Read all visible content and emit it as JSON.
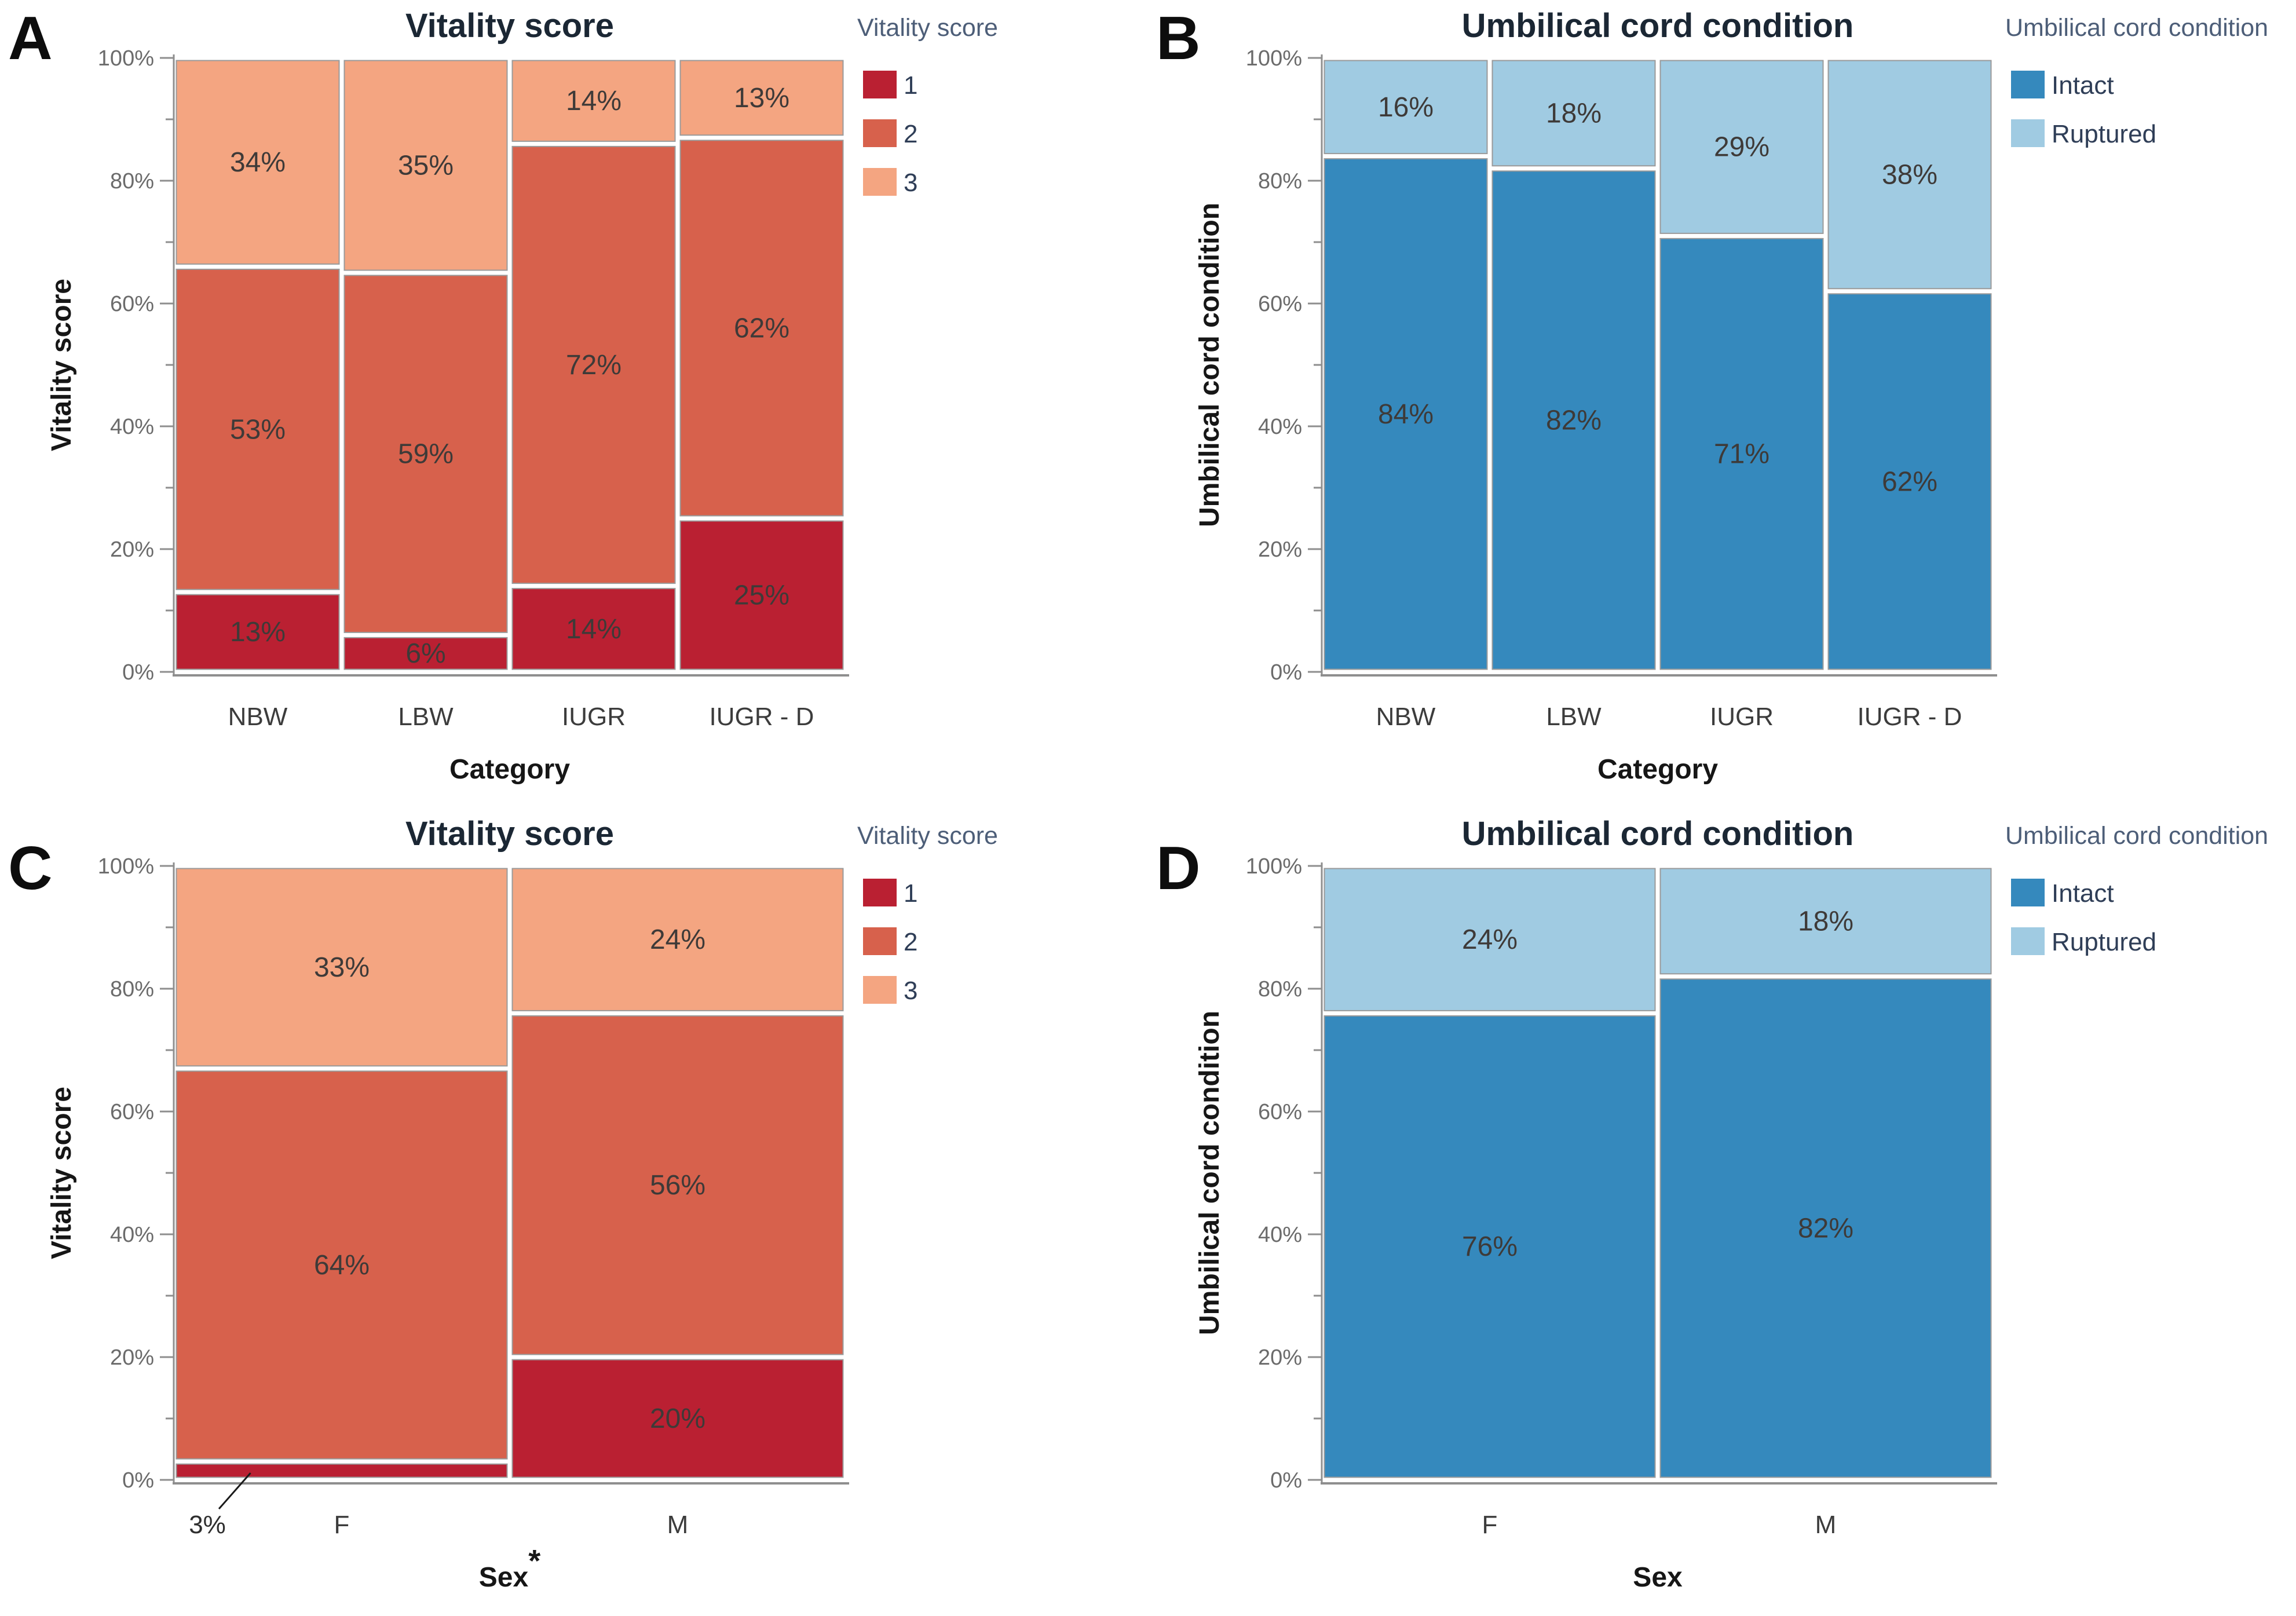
{
  "figure": {
    "panels": [
      {
        "label": "A"
      },
      {
        "label": "B"
      },
      {
        "label": "C"
      },
      {
        "label": "D"
      }
    ],
    "colors": {
      "vitality_1": "#ba2032",
      "vitality_2": "#d7614c",
      "vitality_3": "#f4a581",
      "intact": "#3589bd",
      "ruptured": "#a0cbe2"
    }
  },
  "chart_data": [
    {
      "panel": "A",
      "type": "mosaic",
      "title": "Vitality score",
      "xlabel": "Category",
      "xlabel_sup": "",
      "ylabel": "Vitality score",
      "ylim": [
        0,
        100
      ],
      "yticks": [
        "0%",
        "20%",
        "40%",
        "60%",
        "80%",
        "100%"
      ],
      "categories": [
        "NBW",
        "LBW",
        "IUGR",
        "IUGR - D"
      ],
      "col_widths": [
        0.25,
        0.25,
        0.25,
        0.25
      ],
      "legend_title": "Vitality score",
      "series": [
        {
          "name": "1",
          "color": "#ba2032",
          "values": [
            13,
            6,
            14,
            25
          ]
        },
        {
          "name": "2",
          "color": "#d7614c",
          "values": [
            53,
            59,
            72,
            62
          ]
        },
        {
          "name": "3",
          "color": "#f4a581",
          "values": [
            34,
            35,
            14,
            13
          ]
        }
      ],
      "callouts": []
    },
    {
      "panel": "B",
      "type": "mosaic",
      "title": "Umbilical cord condition",
      "xlabel": "Category",
      "xlabel_sup": "",
      "ylabel": "Umbilical cord condition",
      "ylim": [
        0,
        100
      ],
      "yticks": [
        "0%",
        "20%",
        "40%",
        "60%",
        "80%",
        "100%"
      ],
      "categories": [
        "NBW",
        "LBW",
        "IUGR",
        "IUGR - D"
      ],
      "col_widths": [
        0.25,
        0.25,
        0.25,
        0.25
      ],
      "legend_title": "Umbilical cord condition",
      "series": [
        {
          "name": "Intact",
          "color": "#3589bd",
          "values": [
            84,
            82,
            71,
            62
          ]
        },
        {
          "name": "Ruptured",
          "color": "#a0cbe2",
          "values": [
            16,
            18,
            29,
            38
          ]
        }
      ],
      "callouts": []
    },
    {
      "panel": "C",
      "type": "mosaic",
      "title": "Vitality score",
      "xlabel": "Sex",
      "xlabel_sup": "*",
      "ylabel": "Vitality score",
      "ylim": [
        0,
        100
      ],
      "yticks": [
        "0%",
        "20%",
        "40%",
        "60%",
        "80%",
        "100%"
      ],
      "categories": [
        "F",
        "M"
      ],
      "col_widths": [
        0.5,
        0.5
      ],
      "legend_title": "Vitality score",
      "series": [
        {
          "name": "1",
          "color": "#ba2032",
          "values": [
            3,
            20
          ]
        },
        {
          "name": "2",
          "color": "#d7614c",
          "values": [
            64,
            56
          ]
        },
        {
          "name": "3",
          "color": "#f4a581",
          "values": [
            33,
            24
          ]
        }
      ],
      "callouts": [
        {
          "cat": 0,
          "series": 0,
          "text": "3%"
        }
      ]
    },
    {
      "panel": "D",
      "type": "mosaic",
      "title": "Umbilical cord condition",
      "xlabel": "Sex",
      "xlabel_sup": "",
      "ylabel": "Umbilical cord condition",
      "ylim": [
        0,
        100
      ],
      "yticks": [
        "0%",
        "20%",
        "40%",
        "60%",
        "80%",
        "100%"
      ],
      "categories": [
        "F",
        "M"
      ],
      "col_widths": [
        0.5,
        0.5
      ],
      "legend_title": "Umbilical cord condition",
      "series": [
        {
          "name": "Intact",
          "color": "#3589bd",
          "values": [
            76,
            82
          ]
        },
        {
          "name": "Ruptured",
          "color": "#a0cbe2",
          "values": [
            24,
            18
          ]
        }
      ],
      "callouts": []
    }
  ]
}
